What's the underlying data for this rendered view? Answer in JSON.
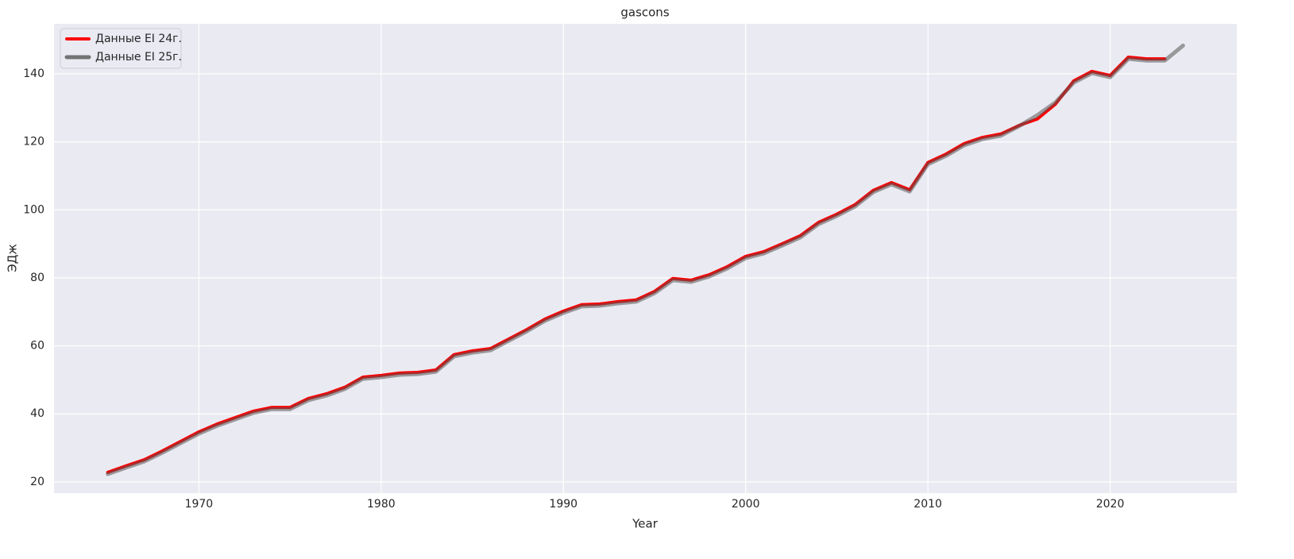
{
  "chart_data": {
    "type": "line",
    "title": "gascons",
    "x_label": "Year",
    "y_label": "ЭДж",
    "x": [
      1965,
      1966,
      1967,
      1968,
      1969,
      1970,
      1971,
      1972,
      1973,
      1974,
      1975,
      1976,
      1977,
      1978,
      1979,
      1980,
      1981,
      1982,
      1983,
      1984,
      1985,
      1986,
      1987,
      1988,
      1989,
      1990,
      1991,
      1992,
      1993,
      1994,
      1995,
      1996,
      1997,
      1998,
      1999,
      2000,
      2001,
      2002,
      2003,
      2004,
      2005,
      2006,
      2007,
      2008,
      2009,
      2010,
      2011,
      2012,
      2013,
      2014,
      2015,
      2016,
      2017,
      2018,
      2019,
      2020,
      2021,
      2022,
      2023,
      2024
    ],
    "series": [
      {
        "name": "Данные EI 24г.",
        "color": "#ff0000",
        "values": [
          22.8,
          24.7,
          26.5,
          29.1,
          31.9,
          34.7,
          37.0,
          38.9,
          40.8,
          41.9,
          41.9,
          44.5,
          45.9,
          47.8,
          50.8,
          51.3,
          52.0,
          52.2,
          52.9,
          57.4,
          58.5,
          59.2,
          62.0,
          64.8,
          67.9,
          70.2,
          72.1,
          72.3,
          73.0,
          73.5,
          76.0,
          79.8,
          79.3,
          80.9,
          83.3,
          86.3,
          87.7,
          90.0,
          92.4,
          96.3,
          98.7,
          101.5,
          105.7,
          108.0,
          105.9,
          113.9,
          116.4,
          119.5,
          121.3,
          122.3,
          124.8,
          126.7,
          131.1,
          137.9,
          140.7,
          139.5,
          144.9,
          144.4,
          144.4,
          null
        ]
      },
      {
        "name": "Данные EI 25г.",
        "color": "#555555",
        "values": [
          22.3,
          24.2,
          26.0,
          28.6,
          31.4,
          34.2,
          36.5,
          38.4,
          40.3,
          41.4,
          41.4,
          44.0,
          45.4,
          47.3,
          50.3,
          50.8,
          51.5,
          51.7,
          52.4,
          56.9,
          58.0,
          58.7,
          61.5,
          64.3,
          67.4,
          69.7,
          71.6,
          71.8,
          72.5,
          73.0,
          75.5,
          79.3,
          78.8,
          80.4,
          82.8,
          85.8,
          87.2,
          89.5,
          91.9,
          95.8,
          98.2,
          101.0,
          105.2,
          107.5,
          105.4,
          113.4,
          115.9,
          119.0,
          120.8,
          121.8,
          124.6,
          127.8,
          131.6,
          137.4,
          140.2,
          139.0,
          144.4,
          143.9,
          143.9,
          148.3
        ]
      }
    ],
    "xlim": [
      1962.05,
      2026.95
    ],
    "xticks": [
      1970,
      1980,
      1990,
      2000,
      2010,
      2020
    ],
    "ylim": [
      16.7,
      154.7
    ],
    "yticks": [
      20,
      40,
      60,
      80,
      100,
      120,
      140
    ],
    "grid": true,
    "legend": "upper left"
  }
}
